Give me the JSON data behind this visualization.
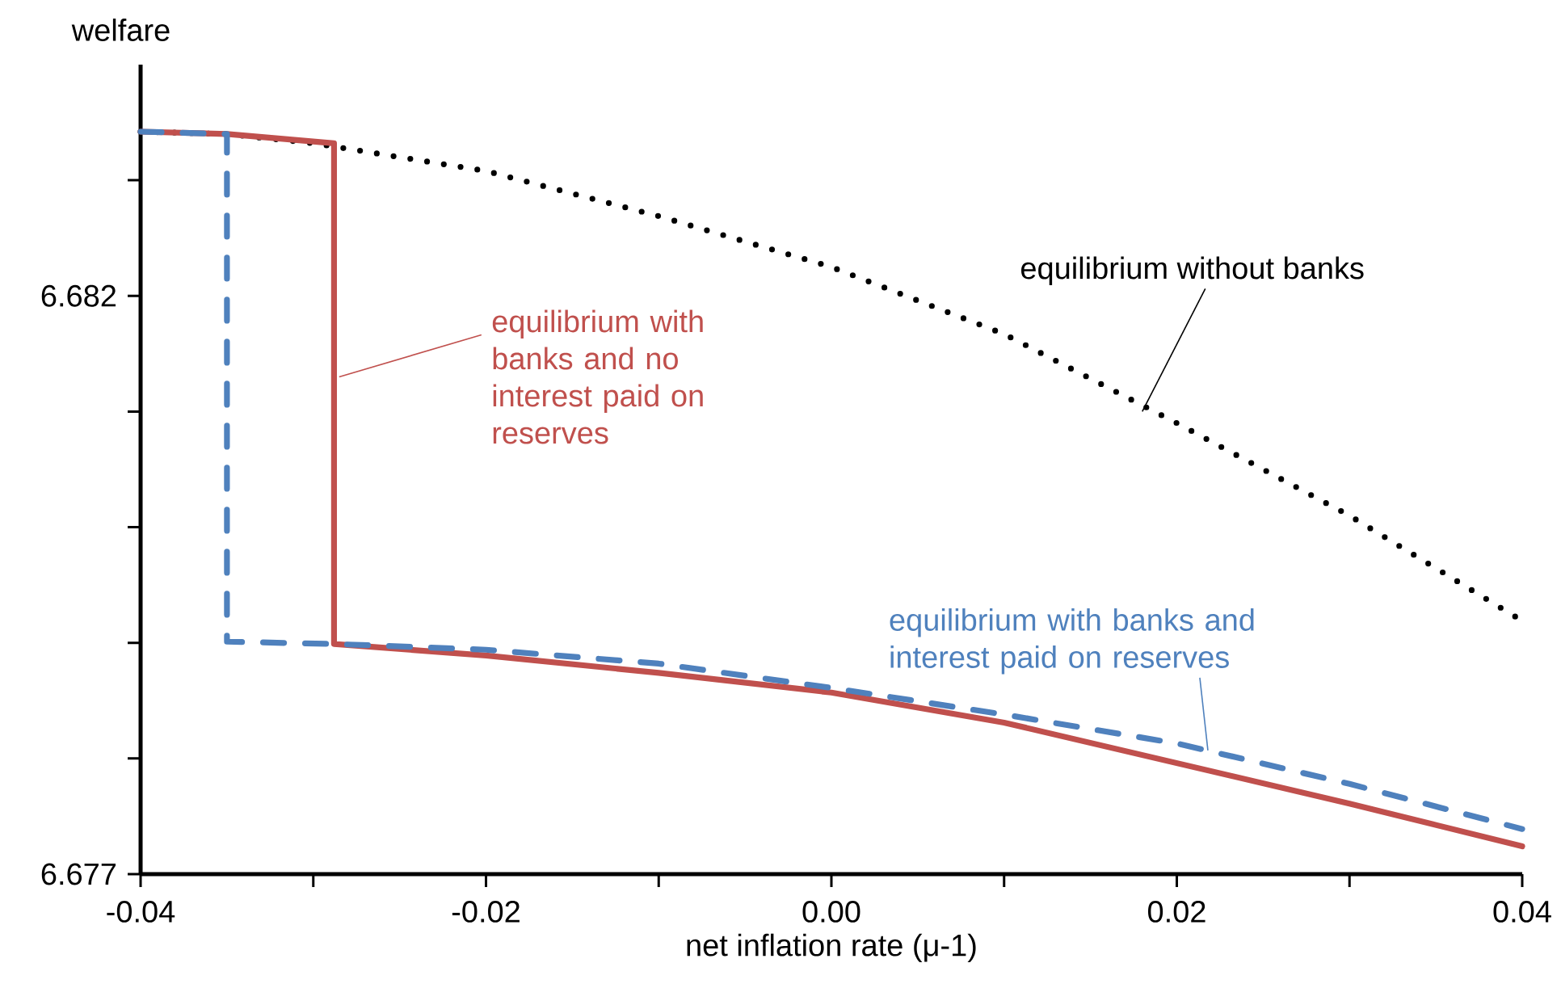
{
  "chart_data": {
    "type": "line",
    "ylabel": "welfare",
    "xlabel": "net inflation rate (μ-1)",
    "xlim": [
      -0.04,
      0.04
    ],
    "ylim": [
      6.677,
      6.684
    ],
    "xticks": [
      -0.04,
      {
        "value": -0.03,
        "label": null
      },
      -0.02,
      {
        "value": -0.01,
        "label": null
      },
      {
        "value": 0,
        "label": "0.00"
      },
      {
        "value": 0.01,
        "label": null
      },
      0.02,
      {
        "value": 0.03,
        "label": null
      },
      0.04
    ],
    "yticks": [
      6.677,
      {
        "value": 6.678,
        "label": null
      },
      {
        "value": 6.679,
        "label": null
      },
      {
        "value": 6.68,
        "label": null
      },
      {
        "value": 6.681,
        "label": null
      },
      6.682,
      {
        "value": 6.683,
        "label": null
      }
    ],
    "grid": false,
    "marker": "none",
    "series": [
      {
        "color": "#000000",
        "line_style": "dotted",
        "x": [
          -0.04,
          -0.035,
          -0.03,
          -0.02,
          -0.01,
          0,
          0.01,
          0.02,
          0.03,
          0.04
        ],
        "values": [
          6.68342,
          6.6834,
          6.68332,
          6.68308,
          6.68269,
          6.68225,
          6.68167,
          6.6809,
          6.6801,
          6.67919
        ]
      },
      {
        "color": "#c0504d",
        "line_style": "solid",
        "x": [
          -0.04,
          -0.035,
          -0.0288,
          -0.0288,
          -0.02,
          -0.01,
          0,
          0.01,
          0.02,
          0.03,
          0.04
        ],
        "values": [
          6.68342,
          6.6834,
          6.68332,
          6.67899,
          6.67889,
          6.67874,
          6.67857,
          6.67831,
          6.67796,
          6.67761,
          6.67724
        ]
      },
      {
        "color": "#4f81bd",
        "line_style": "dashed",
        "x": [
          -0.04,
          -0.035,
          -0.035,
          -0.0288,
          -0.02,
          -0.01,
          0,
          0.01,
          0.02,
          0.03,
          0.04
        ],
        "values": [
          6.68342,
          6.6834,
          6.67901,
          6.67899,
          6.67894,
          6.67882,
          6.67861,
          6.67838,
          6.67813,
          6.67778,
          6.67739
        ]
      }
    ],
    "annotations": [
      {
        "text": "equilibrium without banks",
        "x": 0.018,
        "y": 6.681
      },
      {
        "text": "equilibrium with banks and no interest paid on reserves",
        "x": -0.0285,
        "y": 6.6813
      },
      {
        "text": "equilibrium with banks and interest paid on reserves",
        "x": 0.0218,
        "y": 6.67807
      }
    ]
  }
}
